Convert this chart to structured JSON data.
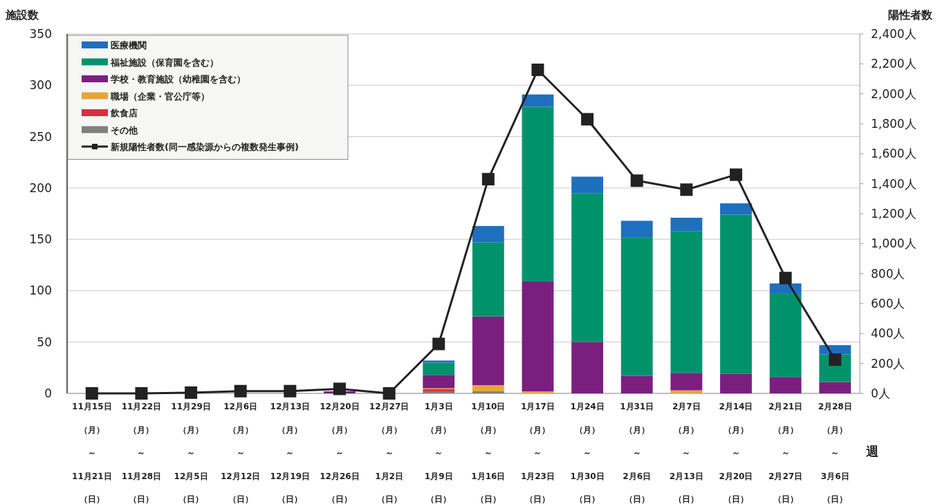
{
  "chart_data": {
    "type": "bar",
    "stacked": true,
    "ylabel": "施設数",
    "y2label": "陽性者数",
    "xlabel": "週",
    "categories": [
      "11月15日（月）～11月21日（日）",
      "11月22日（月）～11月28日（日）",
      "11月29日（月）～12月5日（日）",
      "12月6日（月）～12月12日（日）",
      "12月13日（月）～12月19日（日）",
      "12月20日（月）～12月26日（日）",
      "12月27日（月）～1月2日（日）",
      "1月3日（月）～1月9日（日）",
      "1月10日（月）～1月16日（日）",
      "1月17日（月）～1月23日（日）",
      "1月24日（月）～1月30日（日）",
      "1月31日（月）～2月6日（日）",
      "2月7日（月）～2月13日（日）",
      "2月14日（月）～2月20日（日）",
      "2月21日（月）～2月27日（日）",
      "2月28日（月）～3月6日（日）"
    ],
    "series": [
      {
        "name": "その他",
        "color": "#7f7f7f",
        "values": [
          0,
          0,
          0,
          0,
          0,
          0,
          0,
          2,
          2,
          0,
          0,
          0,
          0,
          0,
          0,
          0
        ]
      },
      {
        "name": "飲食店",
        "color": "#d8303f",
        "values": [
          0,
          0,
          0,
          0,
          0,
          0,
          0,
          2,
          0,
          0,
          0,
          0,
          0,
          0,
          0,
          0
        ]
      },
      {
        "name": "職場（企業・官公庁等）",
        "color": "#e9a53a",
        "values": [
          0,
          0,
          0,
          0,
          0,
          0,
          0,
          1,
          6,
          2,
          0,
          0,
          3,
          0,
          0,
          0
        ]
      },
      {
        "name": "学校・教育施設（幼稚園を含む）",
        "color": "#7b1f7f",
        "values": [
          0,
          0,
          0,
          0,
          0,
          2,
          0,
          13,
          67,
          107,
          50,
          17,
          17,
          19,
          16,
          11
        ]
      },
      {
        "name": "福祉施設（保育園を含む）",
        "color": "#00936b",
        "values": [
          0,
          0,
          0,
          0,
          0,
          0,
          null,
          12,
          72,
          170,
          145,
          135,
          138,
          155,
          81,
          27
        ]
      },
      {
        "name": "医療機関",
        "color": "#1f6fbf",
        "values": [
          0,
          0,
          0,
          0,
          0,
          0,
          0,
          2,
          16,
          12,
          16,
          16,
          13,
          11,
          10,
          9
        ]
      },
      {
        "name": "新規陽性者数(同一感染源からの複数発生事例)",
        "type": "line",
        "axis": "y2",
        "marker": "square",
        "color": "#222222",
        "values": [
          0,
          0,
          5,
          15,
          15,
          30,
          0,
          330,
          1430,
          2160,
          1830,
          1420,
          1360,
          1460,
          770,
          225
        ]
      }
    ],
    "ylim": [
      0,
      350
    ],
    "yticks": [
      0,
      50,
      100,
      150,
      200,
      250,
      300,
      350
    ],
    "y2lim": [
      0,
      2400
    ],
    "y2ticks": [
      {
        "value": 0,
        "label": "0人"
      },
      {
        "value": 200,
        "label": "200人"
      },
      {
        "value": 400,
        "label": "400人"
      },
      {
        "value": 600,
        "label": "600人"
      },
      {
        "value": 800,
        "label": "800人"
      },
      {
        "value": 1000,
        "label": "1,000人"
      },
      {
        "value": 1200,
        "label": "1,200人"
      },
      {
        "value": 1400,
        "label": "1,400人"
      },
      {
        "value": 1600,
        "label": "1,600人"
      },
      {
        "value": 1800,
        "label": "1,800人"
      },
      {
        "value": 2000,
        "label": "2,000人"
      },
      {
        "value": 2200,
        "label": "2,200人"
      },
      {
        "value": 2400,
        "label": "2,400人"
      }
    ],
    "grid": "y",
    "legend": "top left"
  }
}
